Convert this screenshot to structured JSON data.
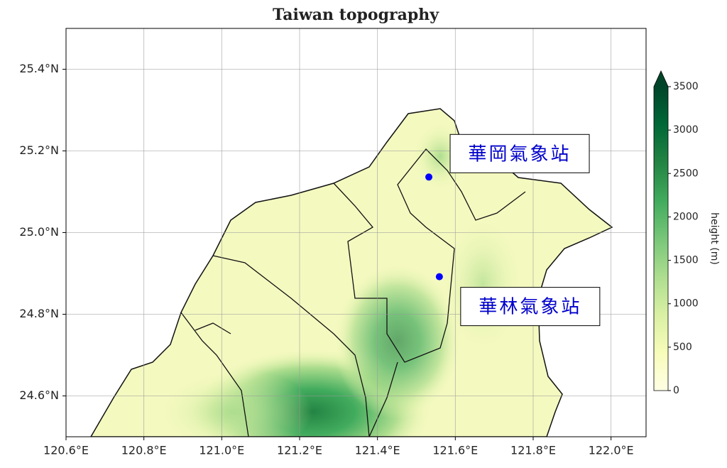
{
  "chart_data": {
    "type": "map",
    "title": "Taiwan topography",
    "xlim": [
      120.6,
      122.09
    ],
    "ylim": [
      24.5,
      25.5
    ],
    "xticks": [
      {
        "value": 120.6,
        "label": "120.6°E"
      },
      {
        "value": 120.8,
        "label": "120.8°E"
      },
      {
        "value": 121.0,
        "label": "121.0°E"
      },
      {
        "value": 121.2,
        "label": "121.2°E"
      },
      {
        "value": 121.4,
        "label": "121.4°E"
      },
      {
        "value": 121.6,
        "label": "121.6°E"
      },
      {
        "value": 121.8,
        "label": "121.8°E"
      },
      {
        "value": 122.0,
        "label": "122.0°E"
      }
    ],
    "yticks": [
      {
        "value": 24.6,
        "label": "24.6°N"
      },
      {
        "value": 24.8,
        "label": "24.8°N"
      },
      {
        "value": 25.0,
        "label": "25.0°N"
      },
      {
        "value": 25.2,
        "label": "25.2°N"
      },
      {
        "value": 25.4,
        "label": "25.4°N"
      }
    ],
    "grid": true,
    "colorbar": {
      "label": "height (m)",
      "lim": [
        0,
        3500
      ],
      "ticks": [
        0,
        500,
        1000,
        1500,
        2000,
        2500,
        3000,
        3500
      ],
      "colors": [
        "#ffffe5",
        "#f7fcb9",
        "#d9f0a3",
        "#addd8e",
        "#78c679",
        "#41ab5d",
        "#238443",
        "#006837",
        "#004529"
      ]
    },
    "points": [
      {
        "name": "華岡氣象站",
        "lon": 121.532,
        "lat": 25.136,
        "color": "#0000ff"
      },
      {
        "name": "華林氣象站",
        "lon": 121.559,
        "lat": 24.892,
        "color": "#0000ff"
      }
    ]
  }
}
